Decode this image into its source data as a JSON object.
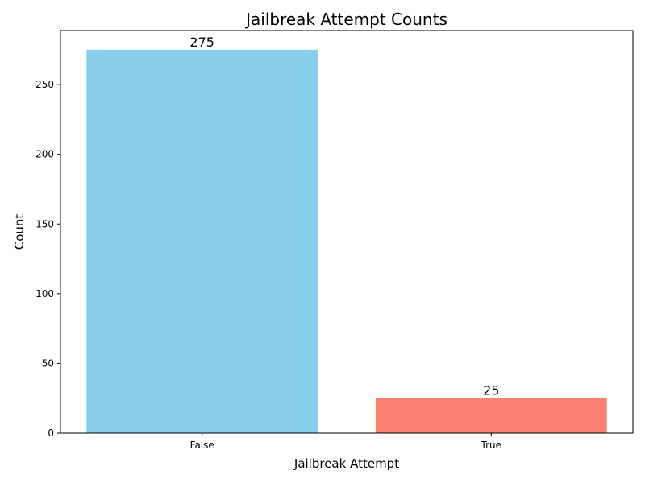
{
  "chart_data": {
    "type": "bar",
    "title": "Jailbreak Attempt Counts",
    "xlabel": "Jailbreak Attempt",
    "ylabel": "Count",
    "categories": [
      "False",
      "True"
    ],
    "values": [
      275,
      25
    ],
    "colors": [
      "#87CEEB",
      "#FA8072"
    ],
    "ylim": [
      0,
      288.75
    ],
    "yticks": [
      0,
      50,
      100,
      150,
      200,
      250
    ],
    "grid": false,
    "legend": "none"
  }
}
